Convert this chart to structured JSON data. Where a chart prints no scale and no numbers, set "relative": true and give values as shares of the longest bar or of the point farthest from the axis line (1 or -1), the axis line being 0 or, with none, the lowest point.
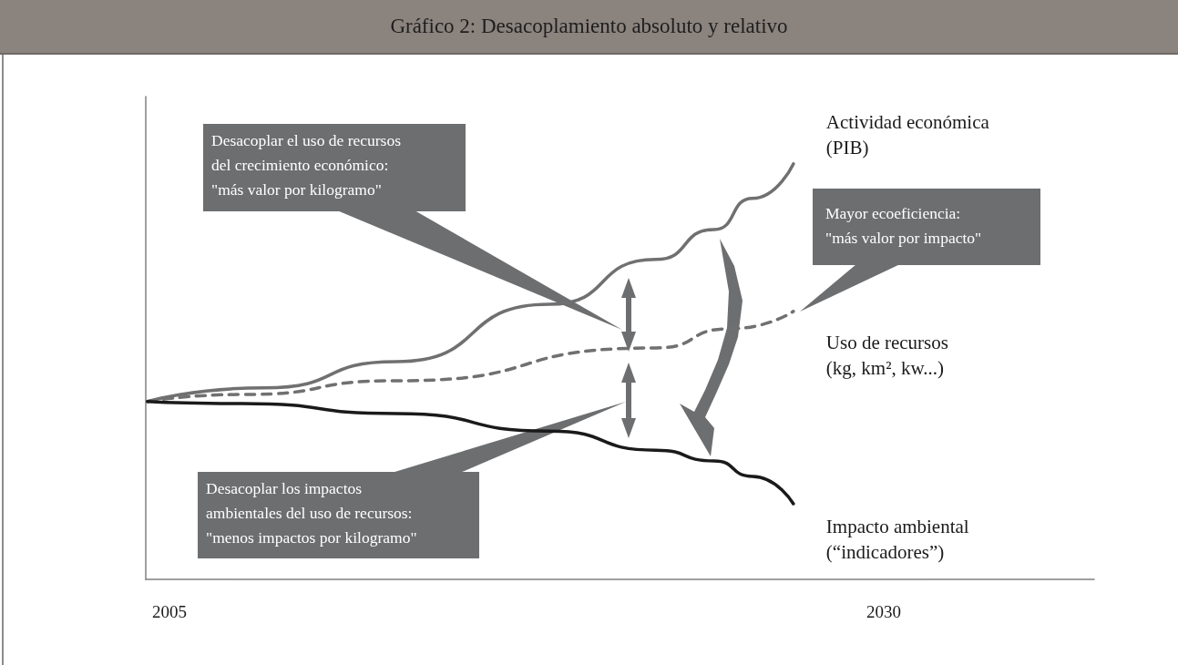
{
  "chart_data": {
    "type": "line",
    "title": "Gráfico 2: Desacoplamiento absoluto y relativo",
    "relative": true,
    "xlim": [
      2004.17,
      2037.37
    ],
    "xticks": [
      2005,
      2030
    ],
    "tick_labels": "x",
    "marker": "none",
    "annotations": [
      "Desacoplar el uso de recursos\ndel crecimiento económico:\n\"más valor por kilogramo\"",
      "Desacoplar los impactos\nambientales del uso de recursos:\n\"menos impactos por kilogramo\"",
      "Mayor ecoeficiencia:\n\"más valor por impacto\""
    ],
    "series": [
      {
        "name": "Actividad económica\n(PIB)",
        "color": "#707070",
        "line_style": "solid",
        "x": [
          2004.23,
          2008.32,
          2012.94,
          2018.3,
          2022.03,
          2024.07,
          2025.41,
          2026.84
        ],
        "values": [
          0.428,
          0.461,
          0.524,
          0.662,
          0.77,
          0.842,
          0.917,
          1
        ]
      },
      {
        "name": "Uso de recursos\n(kg, km², kw...)",
        "color": "#707070",
        "line_style": "dashed",
        "x": [
          2004.23,
          2007.55,
          2012.94,
          2022.03,
          2024.61,
          2026.84
        ],
        "values": [
          0.428,
          0.445,
          0.478,
          0.557,
          0.603,
          0.645
        ]
      },
      {
        "name": "Impacto ambiental\n(“indicadores”)",
        "color": "#1a1a1a",
        "line_style": "solid",
        "x": [
          2004.23,
          2007.55,
          2012.94,
          2018.3,
          2022.03,
          2024.07,
          2025.41,
          2026.84
        ],
        "values": [
          0.428,
          0.423,
          0.399,
          0.357,
          0.311,
          0.285,
          0.248,
          0.182
        ]
      }
    ]
  }
}
